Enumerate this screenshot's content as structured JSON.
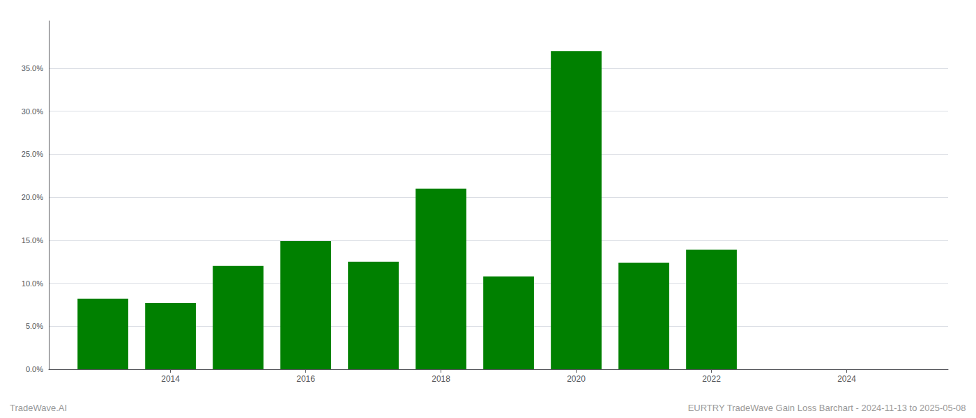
{
  "chart_data": {
    "type": "bar",
    "x": [
      2013,
      2014,
      2015,
      2016,
      2017,
      2018,
      2019,
      2020,
      2021,
      2022,
      2023
    ],
    "values": [
      0.082,
      0.077,
      0.12,
      0.149,
      0.125,
      0.21,
      0.108,
      0.37,
      0.124,
      0.139,
      0.0
    ],
    "color": "#008000",
    "xlim": [
      2012.2,
      2025.5
    ],
    "xticks": [
      2014,
      2016,
      2018,
      2020,
      2022,
      2024
    ],
    "ylim": [
      0.0,
      0.405
    ],
    "yticks": [
      {
        "value": 0.0,
        "label": "0.0%"
      },
      {
        "value": 0.05,
        "label": "5.0%"
      },
      {
        "value": 0.1,
        "label": "10.0%"
      },
      {
        "value": 0.15,
        "label": "15.0%"
      },
      {
        "value": 0.2,
        "label": "20.0%"
      },
      {
        "value": 0.25,
        "label": "25.0%"
      },
      {
        "value": 0.3,
        "label": "30.0%"
      },
      {
        "value": 0.35,
        "label": "35.0%"
      }
    ],
    "grid": true,
    "annotations": [
      "TradeWave.AI",
      "EURTRY TradeWave Gain Loss Barchart - 2024-11-13 to 2025-05-08"
    ]
  }
}
